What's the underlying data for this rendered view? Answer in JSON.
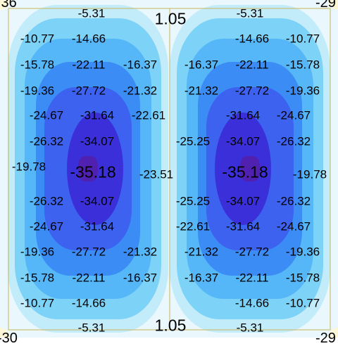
{
  "colors": {
    "frame": "#c8b45a",
    "corner": "#fdf7d8",
    "levels": [
      "#eaf7fd",
      "#c3ecfb",
      "#7dd2f7",
      "#55b6f8",
      "#3b8cf5",
      "#3d62f0",
      "#3a2fd8",
      "#5020b0"
    ]
  },
  "corners": {
    "top_left": ".36",
    "top_right": "-29",
    "bottom_left": "-30",
    "bottom_right": "-29"
  },
  "peak_labels": {
    "top": "1.05",
    "bottom": "1.05"
  },
  "labels": [
    {
      "t": "-5.31"
    },
    {
      "t": "-5.31"
    },
    {
      "t": "-10.77"
    },
    {
      "t": "-14.66"
    },
    {
      "t": "-14.66"
    },
    {
      "t": "-10.77"
    },
    {
      "t": "-15.78"
    },
    {
      "t": "-22.11"
    },
    {
      "t": "-16.37"
    },
    {
      "t": "-16.37"
    },
    {
      "t": "-22.11"
    },
    {
      "t": "-15.78"
    },
    {
      "t": "-19.36"
    },
    {
      "t": "-27.72"
    },
    {
      "t": "-21.32"
    },
    {
      "t": "-21.32"
    },
    {
      "t": "-27.72"
    },
    {
      "t": "-19.36"
    },
    {
      "t": "-24.67"
    },
    {
      "t": "-31.64"
    },
    {
      "t": "-22.61"
    },
    {
      "t": "-31.64"
    },
    {
      "t": "-24.67"
    },
    {
      "t": "-26.32"
    },
    {
      "t": "-34.07"
    },
    {
      "t": "-25.25"
    },
    {
      "t": "-34.07"
    },
    {
      "t": "-26.32"
    },
    {
      "t": "-19.78"
    },
    {
      "t": "-35.18",
      "big": true
    },
    {
      "t": "-23.51"
    },
    {
      "t": "-35.18",
      "big": true
    },
    {
      "t": "-19.78"
    },
    {
      "t": "-26.32"
    },
    {
      "t": "-34.07"
    },
    {
      "t": "-25.25"
    },
    {
      "t": "-34.07"
    },
    {
      "t": "-26.32"
    },
    {
      "t": "-24.67"
    },
    {
      "t": "-31.64"
    },
    {
      "t": "-22.61"
    },
    {
      "t": "-31.64"
    },
    {
      "t": "-24.67"
    },
    {
      "t": "-19.36"
    },
    {
      "t": "-27.72"
    },
    {
      "t": "-21.32"
    },
    {
      "t": "-21.32"
    },
    {
      "t": "-27.72"
    },
    {
      "t": "-19.36"
    },
    {
      "t": "-15.78"
    },
    {
      "t": "-22.11"
    },
    {
      "t": "-16.37"
    },
    {
      "t": "-16.37"
    },
    {
      "t": "-22.11"
    },
    {
      "t": "-15.78"
    },
    {
      "t": "-10.77"
    },
    {
      "t": "-14.66"
    },
    {
      "t": "-14.66"
    },
    {
      "t": "-10.77"
    },
    {
      "t": "-5.31"
    },
    {
      "t": "-5.31"
    }
  ]
}
